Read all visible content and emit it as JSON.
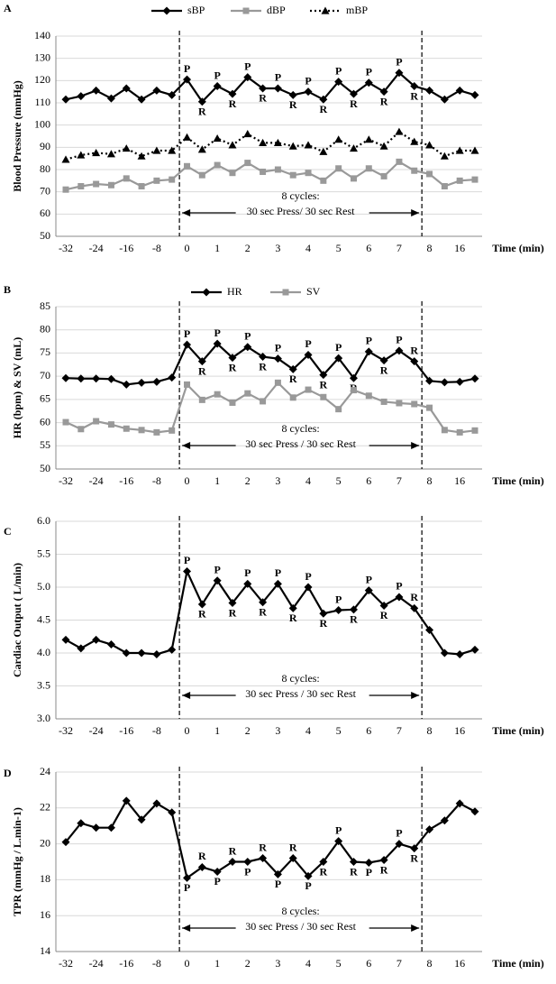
{
  "chart_data": [
    {
      "type": "line",
      "panel_label": "A",
      "y_label": "Blood Pressure (mmHg)",
      "x_label": "Time (min)",
      "categories": [
        "-32",
        null,
        "-24",
        null,
        "-16",
        null,
        "-8",
        null,
        "0",
        null,
        "1",
        null,
        "2",
        null,
        "3",
        null,
        "4",
        null,
        "5",
        null,
        "6",
        null,
        "7",
        null,
        "8",
        null,
        "16",
        null
      ],
      "ylim": [
        50,
        140
      ],
      "yticks": [
        50,
        60,
        70,
        80,
        90,
        100,
        110,
        120,
        130,
        140
      ],
      "grid": true,
      "legend": "top",
      "cycle_note": [
        "8 cycles:",
        "30 sec Press/ 30 sec Rest"
      ],
      "series": [
        {
          "name": "sBP",
          "color": "#000000",
          "marker": "diamond",
          "dash": "solid",
          "values": [
            111.5,
            113,
            115.5,
            112,
            116.5,
            111.5,
            115.5,
            113.5,
            120.5,
            110.5,
            117.5,
            114,
            121.5,
            116.5,
            116.5,
            113.5,
            115,
            111.5,
            119.5,
            114,
            119,
            115,
            123.5,
            117.5,
            115.5,
            111.5,
            115.5,
            113.5
          ],
          "point_labels": [
            null,
            null,
            null,
            null,
            null,
            null,
            null,
            null,
            "P",
            "R",
            "P",
            "R",
            "P",
            "R",
            "P",
            "R",
            "P",
            "R",
            "P",
            "R",
            "P",
            "R",
            "P",
            "R",
            null,
            null,
            null,
            null
          ]
        },
        {
          "name": "dBP",
          "color": "#999999",
          "marker": "square",
          "dash": "solid",
          "values": [
            71,
            72.5,
            73.5,
            73,
            76,
            72.5,
            75,
            75.5,
            81.5,
            77.5,
            82,
            78.5,
            83,
            79,
            80,
            77.5,
            78.5,
            75,
            80.5,
            76,
            80.5,
            77,
            83.5,
            79.5,
            78,
            72.5,
            75,
            75.5
          ]
        },
        {
          "name": "mBP",
          "color": "#000000",
          "marker": "triangle",
          "dash": "dotted",
          "values": [
            84.5,
            86.5,
            87.5,
            87,
            89.5,
            86,
            88.5,
            88.5,
            94.5,
            89,
            94,
            91,
            96,
            92,
            92,
            90.5,
            91,
            88,
            93.5,
            89.5,
            93.5,
            90.5,
            97,
            92.5,
            91,
            86,
            88.5,
            88.5
          ]
        }
      ]
    },
    {
      "type": "line",
      "panel_label": "B",
      "y_label": "HR (bpm) & SV (mL)",
      "x_label": "Time (min)",
      "categories": [
        "-32",
        null,
        "-24",
        null,
        "-16",
        null,
        "-8",
        null,
        "0",
        null,
        "1",
        null,
        "2",
        null,
        "3",
        null,
        "4",
        null,
        "5",
        null,
        "6",
        null,
        "7",
        null,
        "8",
        null,
        "16",
        null
      ],
      "ylim": [
        50,
        85
      ],
      "yticks": [
        50,
        55,
        60,
        65,
        70,
        75,
        80,
        85
      ],
      "grid": true,
      "legend": "top",
      "cycle_note": [
        "8 cycles:",
        "30 sec Press / 30 sec Rest"
      ],
      "series": [
        {
          "name": "HR",
          "color": "#000000",
          "marker": "diamond",
          "dash": "solid",
          "values": [
            69.6,
            69.5,
            69.5,
            69.4,
            68.2,
            68.6,
            68.8,
            69.7,
            76.8,
            73.2,
            77,
            74,
            76.3,
            74.2,
            73.8,
            71.5,
            74.6,
            70.3,
            73.9,
            69.6,
            75.3,
            73.4,
            75.5,
            73.2,
            69,
            68.7,
            68.8,
            69.5
          ],
          "point_labels": [
            null,
            null,
            null,
            null,
            null,
            null,
            null,
            null,
            "P",
            "R",
            "P",
            "R",
            "P",
            "R",
            "P",
            "R",
            "P",
            "R",
            "P",
            "R",
            "P",
            "R",
            "P",
            "R",
            null,
            null,
            null,
            null
          ]
        },
        {
          "name": "SV",
          "color": "#999999",
          "marker": "square",
          "dash": "solid",
          "values": [
            60.1,
            58.6,
            60.3,
            59.6,
            58.7,
            58.4,
            57.9,
            58.3,
            68.2,
            64.9,
            66.1,
            64.3,
            66.3,
            64.6,
            68.6,
            65.4,
            67.1,
            65.5,
            62.9,
            67,
            65.8,
            64.5,
            64.2,
            64,
            63.2,
            58.4,
            57.9,
            58.3
          ]
        }
      ]
    },
    {
      "type": "line",
      "panel_label": "C",
      "y_label": "Cardiac Output ( L/min)",
      "x_label": "Time (min)",
      "categories": [
        "-32",
        null,
        "-24",
        null,
        "-16",
        null,
        "-8",
        null,
        "0",
        null,
        "1",
        null,
        "2",
        null,
        "3",
        null,
        "4",
        null,
        "5",
        null,
        "6",
        null,
        "7",
        null,
        "8",
        null,
        "16",
        null
      ],
      "ylim": [
        3,
        6
      ],
      "yticks": [
        {
          "value": 3,
          "label": "3.0"
        },
        3.5,
        {
          "value": 4,
          "label": "4.0"
        },
        4.5,
        {
          "value": 5,
          "label": "5.0"
        },
        5.5,
        {
          "value": 6,
          "label": "6.0"
        }
      ],
      "grid": true,
      "cycle_note": [
        "8 cycles:",
        "30 sec Press / 30 sec Rest"
      ],
      "series": [
        {
          "color": "#000000",
          "marker": "diamond",
          "dash": "solid",
          "values": [
            4.2,
            4.07,
            4.2,
            4.13,
            4,
            4,
            3.98,
            4.05,
            5.24,
            4.74,
            5.1,
            4.76,
            5.05,
            4.77,
            5.05,
            4.68,
            5,
            4.6,
            4.65,
            4.66,
            4.95,
            4.72,
            4.85,
            4.68,
            4.35,
            4,
            3.98,
            4.05
          ],
          "point_labels": [
            null,
            null,
            null,
            null,
            null,
            null,
            null,
            null,
            "P",
            "R",
            "P",
            "R",
            "P",
            "R",
            "P",
            "R",
            "P",
            "R",
            "P",
            "R",
            "P",
            "R",
            "P",
            "R",
            null,
            null,
            null,
            null
          ]
        }
      ]
    },
    {
      "type": "line",
      "panel_label": "D",
      "y_label": "TPR (mmHg / L.min-1)",
      "x_label": "Time (min)",
      "categories": [
        "-32",
        null,
        "-24",
        null,
        "-16",
        null,
        "-8",
        null,
        "0",
        null,
        "1",
        null,
        "2",
        null,
        "3",
        null,
        "4",
        null,
        "5",
        null,
        "6",
        null,
        "7",
        null,
        "8",
        null,
        "16",
        null
      ],
      "ylim": [
        14,
        24
      ],
      "yticks": [
        14,
        16,
        18,
        20,
        22,
        24
      ],
      "grid": true,
      "cycle_note": [
        "8 cycles:",
        "30 sec Press / 30 sec Rest"
      ],
      "series": [
        {
          "color": "#000000",
          "marker": "diamond",
          "dash": "solid",
          "values": [
            20.1,
            21.15,
            20.9,
            20.9,
            22.4,
            21.35,
            22.25,
            21.75,
            18.1,
            18.7,
            18.45,
            19,
            19,
            19.2,
            18.3,
            19.2,
            18.2,
            19,
            20.15,
            19,
            18.95,
            19.1,
            20,
            19.75,
            20.8,
            21.3,
            22.25,
            21.8
          ],
          "point_labels": [
            null,
            null,
            null,
            null,
            null,
            null,
            null,
            null,
            "P",
            "R",
            "P",
            "R",
            "P",
            "R",
            "P",
            "R",
            "P",
            "R",
            "P",
            "R",
            "P",
            "R",
            "P",
            "R",
            null,
            null,
            null,
            null
          ]
        }
      ]
    }
  ]
}
